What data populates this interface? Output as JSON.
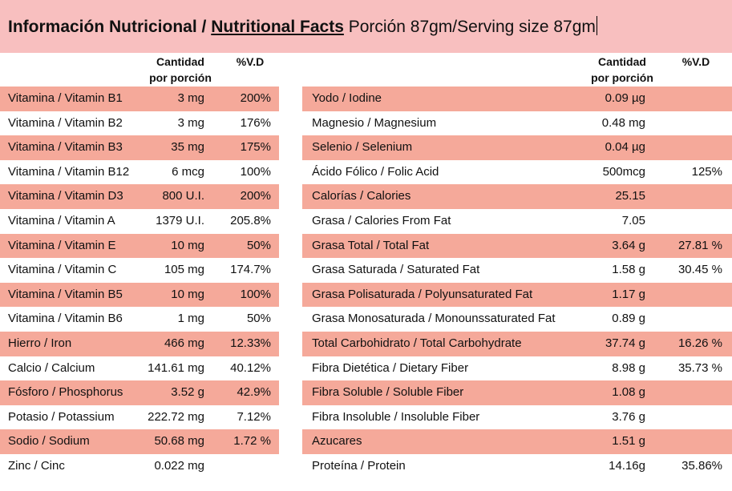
{
  "title": {
    "part1": "Información Nutricional / ",
    "part2": "Nutritional Facts",
    "part3": " Porción 87gm/Serving size 87gm"
  },
  "headers": {
    "amount_line1": "Cantidad",
    "amount_line2": "por porción",
    "dv": "%V.D"
  },
  "left_rows": [
    {
      "name": "Vitamina / Vitamin B1",
      "amount": "3 mg",
      "dv": "200%"
    },
    {
      "name": "Vitamina / Vitamin B2",
      "amount": "3 mg",
      "dv": "176%"
    },
    {
      "name": "Vitamina / Vitamin B3",
      "amount": "35 mg",
      "dv": "175%"
    },
    {
      "name": "Vitamina / Vitamin B12",
      "amount": "6 mcg",
      "dv": "100%"
    },
    {
      "name": "Vitamina / Vitamin D3",
      "amount": "800 U.I.",
      "dv": "200%"
    },
    {
      "name": "Vitamina / Vitamin A",
      "amount": "1379 U.I.",
      "dv": "205.8%"
    },
    {
      "name": "Vitamina / Vitamin E",
      "amount": "10 mg",
      "dv": "50%"
    },
    {
      "name": "Vitamina / Vitamin C",
      "amount": "105 mg",
      "dv": "174.7%"
    },
    {
      "name": "Vitamina / Vitamin B5",
      "amount": "10 mg",
      "dv": "100%"
    },
    {
      "name": "Vitamina / Vitamin B6",
      "amount": "1 mg",
      "dv": "50%"
    },
    {
      "name": "Hierro / Iron",
      "amount": "466 mg",
      "dv": "12.33%"
    },
    {
      "name": "Calcio / Calcium",
      "amount": "141.61 mg",
      "dv": "40.12%"
    },
    {
      "name": "Fósforo / Phosphorus",
      "amount": "3.52 g",
      "dv": "42.9%"
    },
    {
      "name": "Potasio / Potassium",
      "amount": "222.72 mg",
      "dv": "7.12%"
    },
    {
      "name": "Sodio / Sodium",
      "amount": "50.68 mg",
      "dv": "1.72 %"
    },
    {
      "name": "Zinc / Cinc",
      "amount": "0.022 mg",
      "dv": ""
    }
  ],
  "right_rows": [
    {
      "name": "Yodo / Iodine",
      "amount": "0.09 µg",
      "dv": ""
    },
    {
      "name": "Magnesio / Magnesium",
      "amount": "0.48 mg",
      "dv": ""
    },
    {
      "name": "Selenio / Selenium",
      "amount": "0.04 µg",
      "dv": ""
    },
    {
      "name": "Ácido Fólico / Folic Acid",
      "amount": "500mcg",
      "dv": "125%"
    },
    {
      "name": "Calorías / Calories",
      "amount": "25.15",
      "dv": ""
    },
    {
      "name": "Grasa / Calories From Fat",
      "amount": "7.05",
      "dv": ""
    },
    {
      "name": "Grasa Total / Total Fat",
      "amount": "3.64 g",
      "dv": "27.81 %"
    },
    {
      "name": "Grasa Saturada / Saturated Fat",
      "amount": "1.58 g",
      "dv": "30.45 %"
    },
    {
      "name": "Grasa Polisaturada / Polyunsaturated Fat",
      "amount": "1.17 g",
      "dv": ""
    },
    {
      "name": "Grasa Monosaturada / Monounssaturated Fat",
      "amount": "0.89 g",
      "dv": ""
    },
    {
      "name": "Total Carbohidrato / Total Carbohydrate",
      "amount": "37.74 g",
      "dv": "16.26 %"
    },
    {
      "name": "Fibra Dietética / Dietary Fiber",
      "amount": "8.98 g",
      "dv": "35.73 %"
    },
    {
      "name": "Fibra Soluble / Soluble Fiber",
      "amount": "1.08 g",
      "dv": ""
    },
    {
      "name": "Fibra Insoluble / Insoluble Fiber",
      "amount": "3.76 g",
      "dv": ""
    },
    {
      "name": "Azucares",
      "amount": "1.51 g",
      "dv": ""
    },
    {
      "name": "Proteína / Protein",
      "amount": "14.16g",
      "dv": "35.86%"
    }
  ]
}
